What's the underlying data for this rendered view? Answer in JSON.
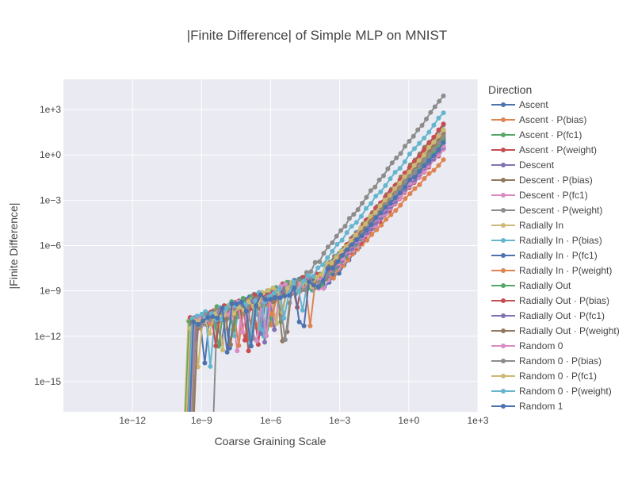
{
  "chart_data": {
    "type": "line",
    "title": "|Finite Difference| of Simple MLP on MNIST",
    "xlabel": "Coarse Graining Scale",
    "ylabel": "|Finite Difference|",
    "x_scale": "log",
    "y_scale": "log",
    "xlim": [
      1e-15,
      1000.0
    ],
    "ylim": [
      1e-17,
      100000.0
    ],
    "x_ticks": [
      {
        "value": 1e-12,
        "label": "1e−12"
      },
      {
        "value": 1e-09,
        "label": "1e−9"
      },
      {
        "value": 1e-06,
        "label": "1e−6"
      },
      {
        "value": 0.001,
        "label": "1e−3"
      },
      {
        "value": 1,
        "label": "1e+0"
      },
      {
        "value": 1000.0,
        "label": "1e+3"
      }
    ],
    "y_ticks": [
      {
        "value": 1000.0,
        "label": "1e+3"
      },
      {
        "value": 1,
        "label": "1e+0"
      },
      {
        "value": 0.001,
        "label": "1e−3"
      },
      {
        "value": 1e-06,
        "label": "1e−6"
      },
      {
        "value": 1e-09,
        "label": "1e−9"
      },
      {
        "value": 1e-12,
        "label": "1e−12"
      },
      {
        "value": 1e-15,
        "label": "1e−15"
      }
    ],
    "grid": true,
    "legend_title": "Direction",
    "legend_position": "right",
    "series": [
      {
        "name": "Ascent",
        "color": "#4c72b0",
        "x_start": 7e-11,
        "ref_y": 0.04,
        "slope": 1.9,
        "ref_x": 2,
        "plateau": 4e-09,
        "tail_count": 3
      },
      {
        "name": "Ascent · P(bias)",
        "color": "#dd8452",
        "x_start": 2e-10,
        "ref_y": 0.006,
        "slope": 1.6,
        "ref_x": 2,
        "plateau": 4e-09,
        "tail_count": 2
      },
      {
        "name": "Ascent · P(fc1)",
        "color": "#55a868",
        "x_start": 9e-11,
        "ref_y": 0.15,
        "slope": 1.8,
        "ref_x": 2,
        "plateau": 3e-09,
        "tail_count": 3
      },
      {
        "name": "Ascent · P(weight)",
        "color": "#c44e52",
        "x_start": 1.2e-10,
        "ref_y": 0.02,
        "slope": 1.7,
        "ref_x": 2,
        "plateau": 5e-09,
        "tail_count": 2
      },
      {
        "name": "Descent",
        "color": "#8172b3",
        "x_start": 1.5e-10,
        "ref_y": 0.1,
        "slope": 1.8,
        "ref_x": 2,
        "plateau": 4e-09,
        "tail_count": 2
      },
      {
        "name": "Descent · P(bias)",
        "color": "#937860",
        "x_start": 2.5e-10,
        "ref_y": 0.5,
        "slope": 1.9,
        "ref_x": 2,
        "plateau": 3e-08,
        "tail_count": 2
      },
      {
        "name": "Descent · P(fc1)",
        "color": "#da8bc3",
        "x_start": 1.8e-10,
        "ref_y": 0.02,
        "slope": 1.7,
        "ref_x": 2,
        "plateau": 3e-09,
        "tail_count": 2
      },
      {
        "name": "Descent · P(weight)",
        "color": "#8c8c8c",
        "x_start": 3e-09,
        "ref_y": 30.0,
        "slope": 2.0,
        "ref_x": 2,
        "plateau": 3e-08,
        "tail_count": 1
      },
      {
        "name": "Radially In",
        "color": "#ccb974",
        "x_start": 1e-10,
        "ref_y": 0.1,
        "slope": 1.8,
        "ref_x": 2,
        "plateau": 4e-09,
        "tail_count": 2
      },
      {
        "name": "Radially In · P(bias)",
        "color": "#64b5cd",
        "x_start": 1.3e-10,
        "ref_y": 0.3,
        "slope": 1.8,
        "ref_x": 2,
        "plateau": 3e-09,
        "tail_count": 2
      },
      {
        "name": "Radially In · P(fc1)",
        "color": "#4c72b0",
        "x_start": 1.6e-10,
        "ref_y": 0.08,
        "slope": 1.8,
        "ref_x": 2,
        "plateau": 4e-09,
        "tail_count": 2
      },
      {
        "name": "Radially In · P(weight)",
        "color": "#dd8452",
        "x_start": 2.2e-10,
        "ref_y": 0.2,
        "slope": 1.9,
        "ref_x": 2,
        "plateau": 5e-09,
        "tail_count": 2
      },
      {
        "name": "Radially Out",
        "color": "#55a868",
        "x_start": 1.1e-10,
        "ref_y": 0.06,
        "slope": 1.8,
        "ref_x": 2,
        "plateau": 3e-09,
        "tail_count": 2
      },
      {
        "name": "Radially Out · P(bias)",
        "color": "#c44e52",
        "x_start": 1.4e-10,
        "ref_y": 0.5,
        "slope": 1.9,
        "ref_x": 2,
        "plateau": 4e-09,
        "tail_count": 2
      },
      {
        "name": "Radially Out · P(fc1)",
        "color": "#8172b3",
        "x_start": 1.7e-10,
        "ref_y": 0.03,
        "slope": 1.7,
        "ref_x": 2,
        "plateau": 3e-09,
        "tail_count": 2
      },
      {
        "name": "Radially Out · P(weight)",
        "color": "#937860",
        "x_start": 2.6e-10,
        "ref_y": 0.15,
        "slope": 1.8,
        "ref_x": 2,
        "plateau": 5e-09,
        "tail_count": 2
      },
      {
        "name": "Random 0",
        "color": "#da8bc3",
        "x_start": 1.9e-10,
        "ref_y": 0.04,
        "slope": 1.7,
        "ref_x": 2,
        "plateau": 3e-09,
        "tail_count": 2
      },
      {
        "name": "Random 0 · P(bias)",
        "color": "#8c8c8c",
        "x_start": 2.1e-10,
        "ref_y": 0.1,
        "slope": 1.8,
        "ref_x": 2,
        "plateau": 4e-09,
        "tail_count": 2
      },
      {
        "name": "Random 0 · P(fc1)",
        "color": "#ccb974",
        "x_start": 1.2e-10,
        "ref_y": 0.25,
        "slope": 1.8,
        "ref_x": 2,
        "plateau": 3e-09,
        "tail_count": 2
      },
      {
        "name": "Random 0 · P(weight)",
        "color": "#64b5cd",
        "x_start": 1.5e-10,
        "ref_y": 3.0,
        "slope": 1.9,
        "ref_x": 2,
        "plateau": 4e-09,
        "tail_count": 2
      },
      {
        "name": "Random 1",
        "color": "#4c72b0",
        "x_start": 1.7e-10,
        "ref_y": 0.05,
        "slope": 1.7,
        "ref_x": 2,
        "plateau": 3e-09,
        "tail_count": 2
      }
    ]
  }
}
